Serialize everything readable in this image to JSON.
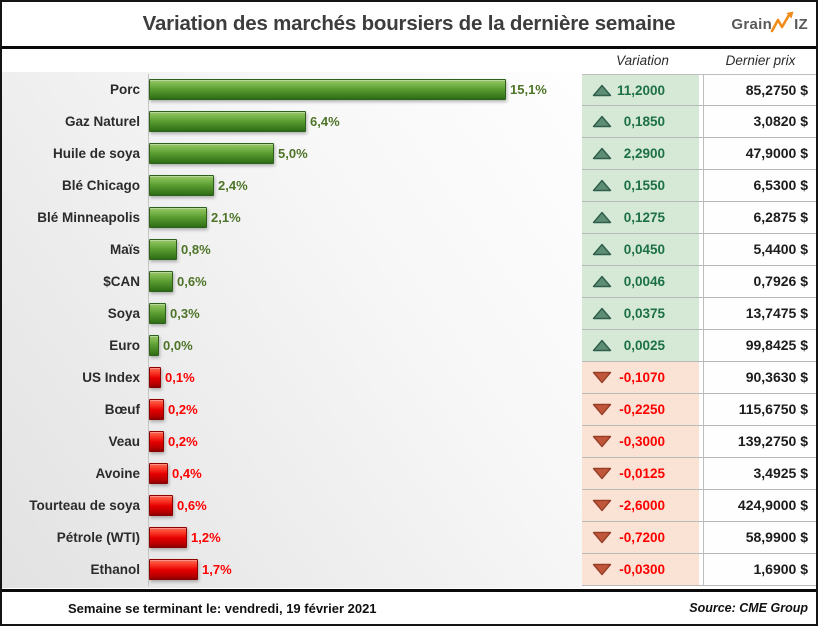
{
  "header": {
    "title": "Variation des marchés boursiers de la dernière semaine",
    "logo": {
      "name": "GrainWiz",
      "part1": "Grain",
      "part2": "IZ",
      "accent_color": "#ef8c1a"
    }
  },
  "table": {
    "variation_header": "Variation",
    "price_header": "Dernier prix"
  },
  "chart_data": {
    "type": "bar",
    "orientation": "horizontal",
    "title": "Variation des marchés boursiers de la dernière semaine",
    "value_unit": "percent",
    "colors": {
      "positive_bar": "#58992f",
      "negative_bar": "#e60000",
      "positive_cell_bg": "#d5e9d6",
      "negative_cell_bg": "#fae2d4",
      "positive_text": "#1d7044",
      "negative_text": "#ff0000"
    },
    "rows": [
      {
        "label": "Porc",
        "pct": 15.1,
        "pct_label": "15,1%",
        "direction": "up",
        "variation": "11,2000",
        "price": "85,2750 $"
      },
      {
        "label": "Gaz Naturel",
        "pct": 6.4,
        "pct_label": "6,4%",
        "direction": "up",
        "variation": "0,1850",
        "price": "3,0820 $"
      },
      {
        "label": "Huile de soya",
        "pct": 5.0,
        "pct_label": "5,0%",
        "direction": "up",
        "variation": "2,2900",
        "price": "47,9000 $"
      },
      {
        "label": "Blé Chicago",
        "pct": 2.4,
        "pct_label": "2,4%",
        "direction": "up",
        "variation": "0,1550",
        "price": "6,5300 $"
      },
      {
        "label": "Blé Minneapolis",
        "pct": 2.1,
        "pct_label": "2,1%",
        "direction": "up",
        "variation": "0,1275",
        "price": "6,2875 $"
      },
      {
        "label": "Maïs",
        "pct": 0.8,
        "pct_label": "0,8%",
        "direction": "up",
        "variation": "0,0450",
        "price": "5,4400 $"
      },
      {
        "label": "$CAN",
        "pct": 0.6,
        "pct_label": "0,6%",
        "direction": "up",
        "variation": "0,0046",
        "price": "0,7926 $"
      },
      {
        "label": "Soya",
        "pct": 0.3,
        "pct_label": "0,3%",
        "direction": "up",
        "variation": "0,0375",
        "price": "13,7475 $"
      },
      {
        "label": "Euro",
        "pct": 0.0,
        "pct_label": "0,0%",
        "direction": "up",
        "variation": "0,0025",
        "price": "99,8425 $"
      },
      {
        "label": "US Index",
        "pct": -0.1,
        "pct_label": "0,1%",
        "direction": "down",
        "variation": "-0,1070",
        "price": "90,3630 $"
      },
      {
        "label": "Bœuf",
        "pct": -0.2,
        "pct_label": "0,2%",
        "direction": "down",
        "variation": "-0,2250",
        "price": "115,6750 $"
      },
      {
        "label": "Veau",
        "pct": -0.2,
        "pct_label": "0,2%",
        "direction": "down",
        "variation": "-0,3000",
        "price": "139,2750 $"
      },
      {
        "label": "Avoine",
        "pct": -0.4,
        "pct_label": "0,4%",
        "direction": "down",
        "variation": "-0,0125",
        "price": "3,4925 $"
      },
      {
        "label": "Tourteau de soya",
        "pct": -0.6,
        "pct_label": "0,6%",
        "direction": "down",
        "variation": "-2,6000",
        "price": "424,9000 $"
      },
      {
        "label": "Pétrole (WTI)",
        "pct": -1.2,
        "pct_label": "1,2%",
        "direction": "down",
        "variation": "-0,7200",
        "price": "58,9900 $"
      },
      {
        "label": "Ethanol",
        "pct": -1.7,
        "pct_label": "1,7%",
        "direction": "down",
        "variation": "-0,0300",
        "price": "1,6900 $"
      }
    ]
  },
  "footer": {
    "week_ending": "Semaine se terminant le:  vendredi, 19 février 2021",
    "source": "Source: CME Group"
  }
}
